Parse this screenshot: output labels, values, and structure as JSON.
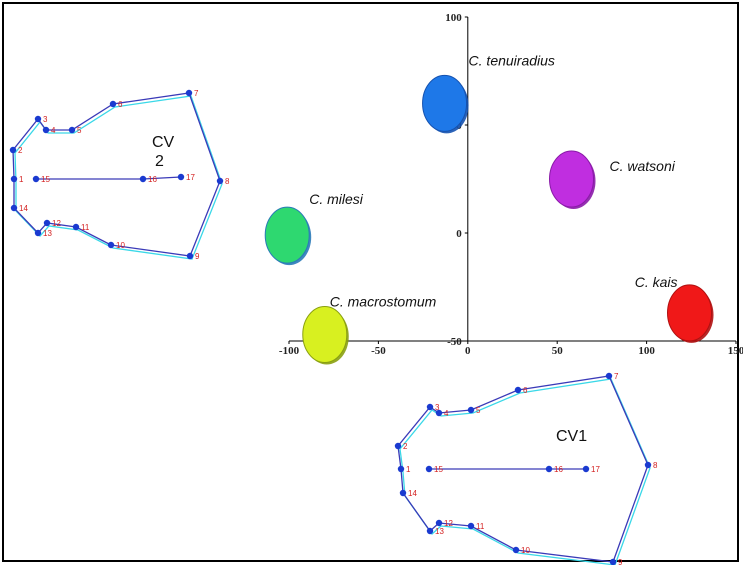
{
  "chart_data": {
    "type": "scatter",
    "title": "",
    "xlabel": "",
    "ylabel": "",
    "xlim": [
      -100,
      150
    ],
    "ylim": [
      -50,
      100
    ],
    "x_ticks": [
      -100,
      -50,
      0,
      50,
      100,
      150
    ],
    "y_ticks": [
      -50,
      0,
      50,
      100
    ],
    "grid": false,
    "series": [
      {
        "name": "C. tenuiradius",
        "x": -13,
        "y": 60,
        "color": "#1e78e8",
        "edge": "#1552b0"
      },
      {
        "name": "C. watsoni",
        "x": 58,
        "y": 25,
        "color": "#c02ee0",
        "edge": "#8a1aa8"
      },
      {
        "name": "C. milesi",
        "x": -101,
        "y": -1,
        "color": "#2ed870",
        "edge": "#2a7ab8"
      },
      {
        "name": "C. kais",
        "x": 124,
        "y": -37,
        "color": "#f01818",
        "edge": "#b01010"
      },
      {
        "name": "C. macrostomum",
        "x": -80,
        "y": -47,
        "color": "#d8f020",
        "edge": "#8aa010"
      }
    ],
    "deformation_grids": [
      {
        "label_line1": "CV",
        "label_line2": "2",
        "landmark_labels": [
          "1",
          "2",
          "3",
          "4",
          "5",
          "6",
          "7",
          "8",
          "9",
          "10",
          "11",
          "12",
          "13",
          "14",
          "15",
          "16",
          "17"
        ]
      },
      {
        "label_line1": "CV1",
        "label_line2": "",
        "landmark_labels": [
          "1",
          "2",
          "3",
          "4",
          "5",
          "6",
          "7",
          "8",
          "9",
          "10",
          "11",
          "12",
          "13",
          "14",
          "15",
          "16",
          "17"
        ]
      }
    ]
  }
}
